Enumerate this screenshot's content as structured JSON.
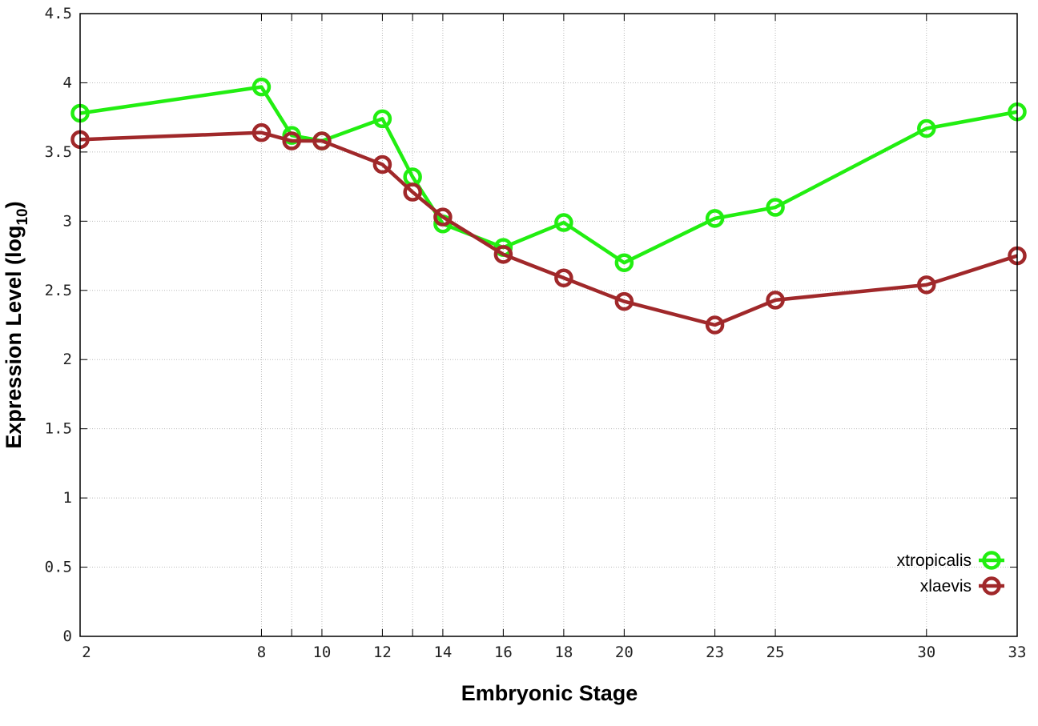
{
  "chart_data": {
    "type": "line",
    "title": "",
    "xlabel": "Embryonic Stage",
    "ylabel": "Expression Level (log",
    "ylabel_subscript": "10",
    "ylabel_close": ")",
    "xlim": [
      2,
      33
    ],
    "ylim": [
      0,
      4.5
    ],
    "grid": true,
    "legend_position": "bottom-right",
    "x_ticks": [
      2,
      8,
      10,
      12,
      14,
      16,
      18,
      20,
      23,
      25,
      30,
      33
    ],
    "x_tick_labels": [
      "2",
      "8",
      "10",
      "12",
      "14",
      "16",
      "18",
      "20",
      "23",
      "25",
      "30",
      "33"
    ],
    "x_minor_ticks": [
      9,
      13
    ],
    "y_ticks": [
      0,
      0.5,
      1,
      1.5,
      2,
      2.5,
      3,
      3.5,
      4,
      4.5
    ],
    "y_tick_labels": [
      "0",
      "0.5",
      "1",
      "1.5",
      "2",
      "2.5",
      "3",
      "3.5",
      "4",
      "4.5"
    ],
    "x": [
      2,
      8,
      9,
      10,
      12,
      13,
      14,
      16,
      18,
      20,
      23,
      25,
      30,
      33
    ],
    "series": [
      {
        "name": "xtropicalis",
        "color": "#22ee11",
        "values": [
          3.78,
          3.97,
          3.62,
          3.58,
          3.74,
          3.32,
          2.98,
          2.81,
          2.99,
          2.7,
          3.02,
          3.1,
          3.67,
          3.79
        ]
      },
      {
        "name": "xlaevis",
        "color": "#a0282a",
        "values": [
          3.59,
          3.64,
          3.58,
          3.58,
          3.41,
          3.21,
          3.03,
          2.76,
          2.59,
          2.42,
          2.25,
          2.43,
          2.54,
          2.75
        ]
      }
    ]
  }
}
